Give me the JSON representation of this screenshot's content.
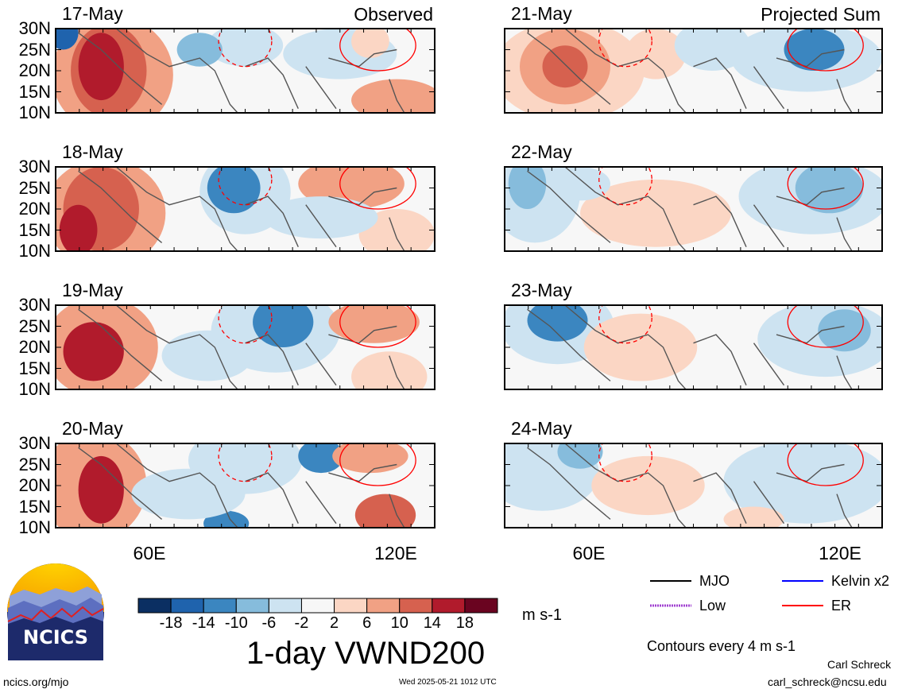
{
  "figure": {
    "title": "1-day VWND200",
    "units": "m s-1",
    "columns": [
      {
        "header": "Observed",
        "dates": [
          "17-May",
          "18-May",
          "19-May",
          "20-May"
        ]
      },
      {
        "header": "Projected Sum",
        "dates": [
          "21-May",
          "22-May",
          "23-May",
          "24-May"
        ]
      }
    ],
    "lat_labels": [
      "30N",
      "25N",
      "20N",
      "15N",
      "10N"
    ],
    "lon_labels": [
      "60E",
      "120E"
    ]
  },
  "colorbar": {
    "tick_labels": [
      "-18",
      "-14",
      "-10",
      "-6",
      "-2",
      "2",
      "6",
      "10",
      "14",
      "18"
    ],
    "colors": [
      "#0b2f62",
      "#1f63ad",
      "#3b86c0",
      "#86bcdc",
      "#cde3f1",
      "#f7f7f7",
      "#fbd6c4",
      "#f1a184",
      "#d6614f",
      "#b11b2c",
      "#6a0420"
    ]
  },
  "legend": {
    "items": [
      {
        "label": "MJO",
        "color": "#000000",
        "style": "solid"
      },
      {
        "label": "Kelvin x2",
        "color": "#0000ff",
        "style": "solid"
      },
      {
        "label": "Low",
        "color": "#a040d0",
        "style": "dotted"
      },
      {
        "label": "ER",
        "color": "#ff0000",
        "style": "solid"
      }
    ],
    "note": "Contours every 4 m s-1"
  },
  "logo": {
    "text": "NCICS"
  },
  "footer": {
    "url": "ncics.org/mjo",
    "timestamp": "Wed 2025-05-21 1012 UTC",
    "author": "Carl Schreck",
    "email": "carl_schreck@ncsu.edu"
  }
}
